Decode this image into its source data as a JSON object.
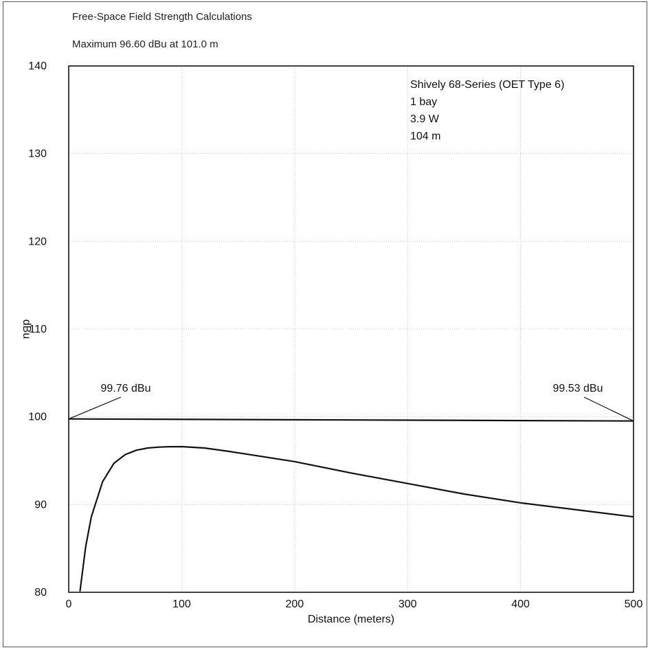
{
  "chart_data": {
    "type": "line",
    "title": "Free-Space Field Strength Calculations",
    "subtitle": "Maximum 96.60 dBu at 101.0 m",
    "xlabel": "Distance (meters)",
    "ylabel": "dBu",
    "xlim": [
      0,
      500
    ],
    "ylim": [
      80,
      140
    ],
    "x_ticks": [
      "0",
      "100",
      "200",
      "300",
      "400",
      "500"
    ],
    "y_ticks": [
      "80",
      "90",
      "100",
      "110",
      "120",
      "130",
      "140"
    ],
    "grid": true,
    "legend_lines": [
      "Shively 68-Series (OET Type 6)",
      "1 bay",
      "3.9 W",
      "104 m"
    ],
    "series": [
      {
        "x": [
          10,
          15,
          20,
          30,
          40,
          50,
          60,
          70,
          80,
          90,
          101,
          120,
          140,
          160,
          180,
          200,
          250,
          300,
          350,
          400,
          450,
          500
        ],
        "values": [
          80.1,
          85.2,
          88.6,
          92.6,
          94.7,
          95.7,
          96.2,
          96.45,
          96.55,
          96.6,
          96.6,
          96.45,
          96.1,
          95.7,
          95.3,
          94.9,
          93.6,
          92.4,
          91.2,
          90.2,
          89.4,
          88.6
        ]
      },
      {
        "x": [
          0,
          500
        ],
        "values": [
          99.76,
          99.53
        ]
      }
    ],
    "annotations": [
      {
        "text": "99.76 dBu",
        "x": 0,
        "y": 99.76
      },
      {
        "text": "99.53 dBu",
        "x": 500,
        "y": 99.53
      }
    ]
  }
}
